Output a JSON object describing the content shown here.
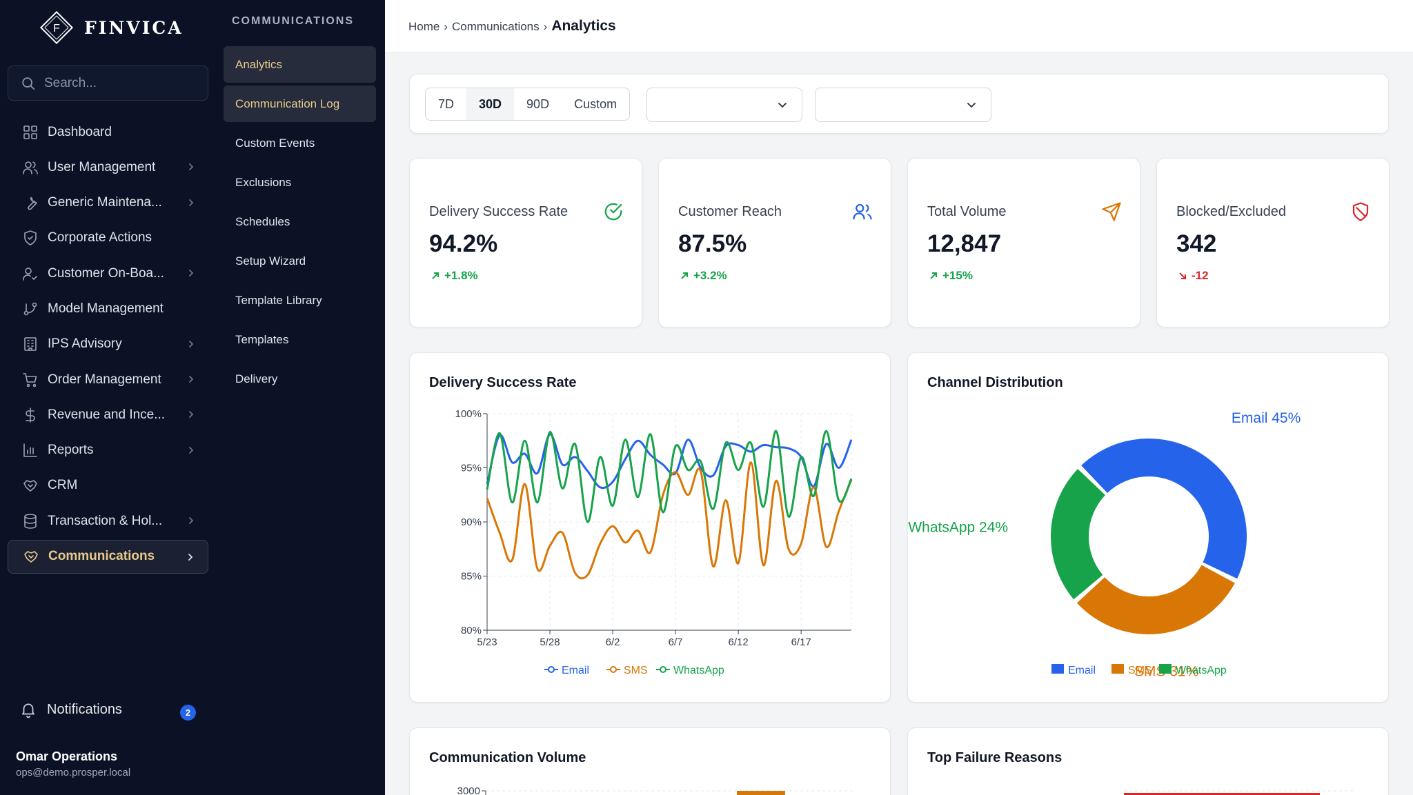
{
  "brand": {
    "name": "FINVICA",
    "monogram": "F"
  },
  "search": {
    "placeholder": "Search..."
  },
  "sidebar": {
    "items": [
      {
        "label": "Dashboard",
        "icon": "dashboard-grid-icon",
        "has_children": false
      },
      {
        "label": "User Management",
        "icon": "users-icon",
        "has_children": true
      },
      {
        "label": "Generic Maintena...",
        "icon": "wrench-icon",
        "has_children": true
      },
      {
        "label": "Corporate Actions",
        "icon": "shield-icon",
        "has_children": false
      },
      {
        "label": "Customer On-Boa...",
        "icon": "user-check-icon",
        "has_children": true
      },
      {
        "label": "Model Management",
        "icon": "git-branch-icon",
        "has_children": false
      },
      {
        "label": "IPS Advisory",
        "icon": "building-icon",
        "has_children": true
      },
      {
        "label": "Order Management",
        "icon": "cart-icon",
        "has_children": true
      },
      {
        "label": "Revenue and Ince...",
        "icon": "dollar-icon",
        "has_children": true
      },
      {
        "label": "Reports",
        "icon": "bar-chart-icon",
        "has_children": true
      },
      {
        "label": "CRM",
        "icon": "handshake-icon",
        "has_children": false
      },
      {
        "label": "Transaction & Hol...",
        "icon": "database-icon",
        "has_children": true
      },
      {
        "label": "Communications",
        "icon": "handshake-icon",
        "has_children": true,
        "active": true
      }
    ],
    "notifications": {
      "label": "Notifications",
      "count": "2"
    },
    "user": {
      "name": "Omar Operations",
      "email": "ops@demo.prosper.local"
    }
  },
  "subnav": {
    "title": "COMMUNICATIONS",
    "items": [
      {
        "label": "Analytics",
        "active": true
      },
      {
        "label": "Communication Log",
        "highlighted": true
      },
      {
        "label": "Custom Events"
      },
      {
        "label": "Exclusions"
      },
      {
        "label": "Schedules"
      },
      {
        "label": "Setup Wizard"
      },
      {
        "label": "Template Library"
      },
      {
        "label": "Templates"
      },
      {
        "label": "Delivery"
      }
    ]
  },
  "breadcrumb": {
    "home": "Home",
    "sep": "›",
    "section": "Communications",
    "current": "Analytics"
  },
  "filters": {
    "ranges": [
      "7D",
      "30D",
      "90D",
      "Custom"
    ],
    "selected_range": "30D",
    "dropdown_1_value": "",
    "dropdown_2_value": ""
  },
  "kpis": [
    {
      "label": "Delivery Success Rate",
      "value": "94.2%",
      "delta": "+1.8%",
      "trend": "up",
      "icon": "check-circle-icon",
      "color": "#16a34a"
    },
    {
      "label": "Customer Reach",
      "value": "87.5%",
      "delta": "+3.2%",
      "trend": "up",
      "icon": "users-icon",
      "color": "#2563eb"
    },
    {
      "label": "Total Volume",
      "value": "12,847",
      "delta": "+15%",
      "trend": "up",
      "icon": "send-icon",
      "color": "#d97706"
    },
    {
      "label": "Blocked/Excluded",
      "value": "342",
      "delta": "-12",
      "trend": "down",
      "icon": "shield-off-icon",
      "color": "#dc2626"
    }
  ],
  "charts": {
    "delivery_title": "Delivery Success Rate",
    "channel_title": "Channel Distribution",
    "volume_title": "Communication Volume",
    "failures_title": "Top Failure Reasons"
  },
  "chart_data": [
    {
      "type": "line",
      "title": "Delivery Success Rate",
      "x": [
        "5/23",
        "5/24",
        "5/25",
        "5/26",
        "5/27",
        "5/28",
        "5/29",
        "5/30",
        "5/31",
        "6/1",
        "6/2",
        "6/3",
        "6/4",
        "6/5",
        "6/6",
        "6/7",
        "6/8",
        "6/9",
        "6/10",
        "6/11",
        "6/12",
        "6/13",
        "6/14",
        "6/15",
        "6/16",
        "6/17",
        "6/18",
        "6/19",
        "6/20",
        "6/21"
      ],
      "x_tick_labels": [
        "5/23",
        "5/28",
        "6/2",
        "6/7",
        "6/12",
        "6/17"
      ],
      "ylim": [
        80,
        100
      ],
      "y_tick_labels": [
        "100%",
        "95%",
        "90%",
        "85%",
        "80%"
      ],
      "series": [
        {
          "name": "Email",
          "color": "#2563eb",
          "values": [
            93.5,
            98.0,
            95.5,
            96.3,
            94.5,
            98.1,
            95.3,
            96.0,
            94.7,
            93.2,
            93.7,
            95.8,
            97.5,
            96.2,
            95.3,
            94.5,
            97.6,
            95.0,
            94.3,
            97.0,
            97.1,
            96.5,
            97.1,
            96.9,
            96.8,
            96.0,
            93.3,
            97.2,
            95.0,
            97.6
          ]
        },
        {
          "name": "SMS",
          "color": "#d97706",
          "values": [
            92.2,
            89.0,
            86.5,
            93.5,
            85.7,
            87.8,
            89.0,
            85.3,
            85.1,
            88.0,
            89.6,
            88.1,
            89.2,
            87.2,
            92.5,
            94.6,
            92.5,
            94.7,
            85.9,
            92.0,
            86.2,
            95.5,
            86.0,
            93.8,
            87.5,
            88.0,
            93.2,
            87.7,
            91.0,
            93.9
          ]
        },
        {
          "name": "WhatsApp",
          "color": "#16a34a",
          "values": [
            93.0,
            98.2,
            91.8,
            97.5,
            91.8,
            98.3,
            93.1,
            97.2,
            90.0,
            96.0,
            91.5,
            97.6,
            92.3,
            98.1,
            90.9,
            97.0,
            94.8,
            95.6,
            91.2,
            97.3,
            94.8,
            97.3,
            91.4,
            98.4,
            90.5,
            96.0,
            92.4,
            98.4,
            92.0,
            94.0
          ]
        }
      ],
      "legend_position": "bottom",
      "grid": true
    },
    {
      "type": "pie",
      "donut": true,
      "title": "Channel Distribution",
      "slices": [
        {
          "name": "Email",
          "value": 45,
          "label": "Email 45%",
          "color": "#2563eb"
        },
        {
          "name": "SMS",
          "value": 31,
          "label": "SMS 31%",
          "color": "#d97706"
        },
        {
          "name": "WhatsApp",
          "value": 24,
          "label": "WhatsApp 24%",
          "color": "#16a34a"
        }
      ],
      "legend_position": "bottom"
    },
    {
      "type": "bar",
      "title": "Communication Volume",
      "y_tick_labels": [
        "3000"
      ]
    },
    {
      "type": "bar",
      "title": "Top Failure Reasons"
    }
  ]
}
